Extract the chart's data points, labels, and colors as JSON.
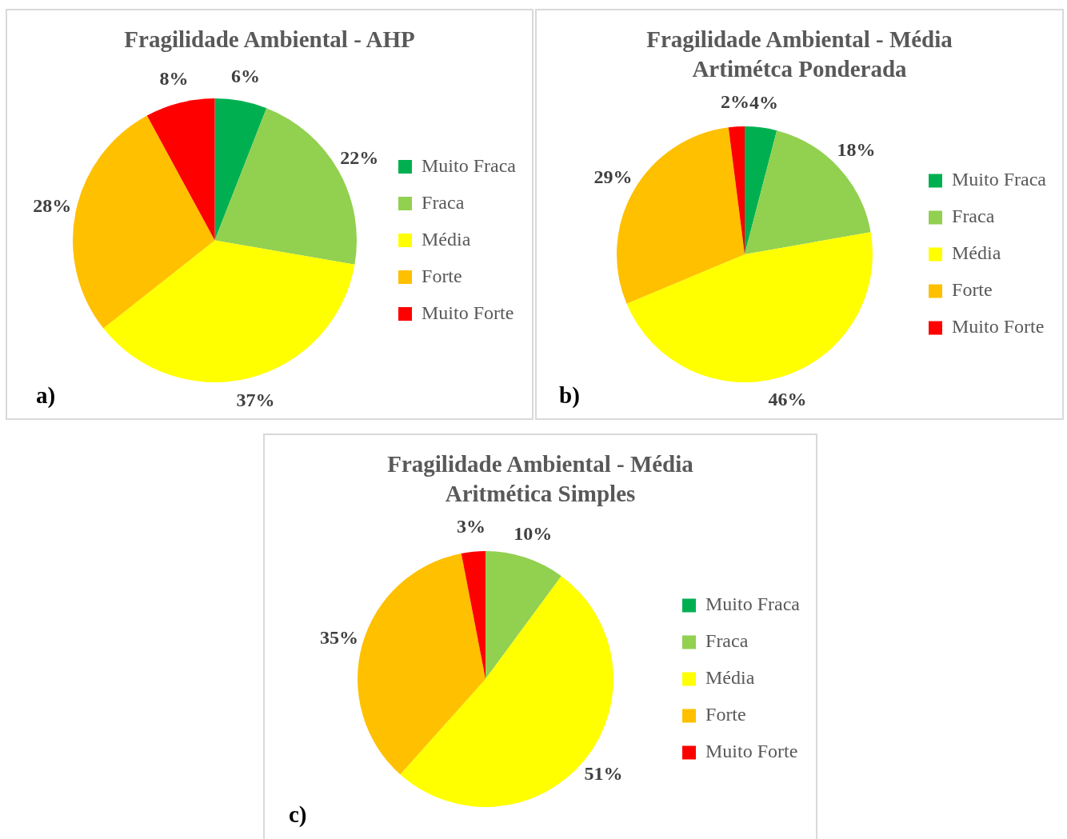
{
  "chart_data": [
    {
      "type": "pie",
      "title": "Fragilidade Ambiental - AHP",
      "categories": [
        "Muito Fraca",
        "Fraca",
        "Média",
        "Forte",
        "Muito Forte"
      ],
      "values": [
        6,
        22,
        37,
        28,
        8
      ],
      "colors": [
        "#00b050",
        "#92d050",
        "#ffff00",
        "#ffc000",
        "#ff0000"
      ],
      "value_labels": [
        "6%",
        "22%",
        "37%",
        "28%",
        "8%"
      ],
      "legend": "right",
      "annotations": [
        "a)"
      ]
    },
    {
      "type": "pie",
      "title": "Fragilidade Ambiental - Média Artimétca Ponderada",
      "categories": [
        "Muito Fraca",
        "Fraca",
        "Média",
        "Forte",
        "Muito Forte"
      ],
      "values": [
        4,
        18,
        46,
        29,
        2
      ],
      "colors": [
        "#00b050",
        "#92d050",
        "#ffff00",
        "#ffc000",
        "#ff0000"
      ],
      "value_labels": [
        "4%",
        "18%",
        "46%",
        "29%",
        "2%"
      ],
      "legend": "right",
      "annotations": [
        "b)"
      ]
    },
    {
      "type": "pie",
      "title": "Fragilidade Ambiental - Média Aritmética Simples",
      "categories": [
        "Muito Fraca",
        "Fraca",
        "Média",
        "Forte",
        "Muito Forte"
      ],
      "values": [
        0,
        10,
        51,
        35,
        3
      ],
      "colors": [
        "#00b050",
        "#92d050",
        "#ffff00",
        "#ffc000",
        "#ff0000"
      ],
      "value_labels": [
        null,
        "10%",
        "51%",
        "35%",
        "3%"
      ],
      "legend": "right",
      "annotations": [
        "c)"
      ]
    }
  ]
}
